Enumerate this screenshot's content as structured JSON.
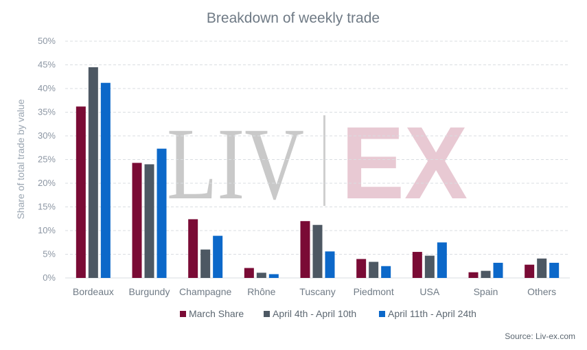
{
  "chart_data": {
    "type": "bar",
    "title": "Breakdown of weekly trade",
    "ylabel": "Share of total trade by value",
    "xlabel": "",
    "ylim": [
      0,
      50
    ],
    "yticks": [
      "0%",
      "5%",
      "10%",
      "15%",
      "20%",
      "25%",
      "30%",
      "35%",
      "40%",
      "45%",
      "50%"
    ],
    "grid": true,
    "legend_position": "bottom",
    "categories": [
      "Bordeaux",
      "Burgundy",
      "Champagne",
      "Rhône",
      "Tuscany",
      "Piedmont",
      "USA",
      "Spain",
      "Others"
    ],
    "series": [
      {
        "name": "March Share",
        "color": "#7a0b35",
        "values": [
          36.2,
          24.3,
          12.4,
          2.1,
          12.0,
          4.0,
          5.5,
          1.2,
          2.8
        ]
      },
      {
        "name": "April 4th - April 10th",
        "color": "#4d5863",
        "values": [
          44.5,
          24.0,
          6.0,
          1.1,
          11.2,
          3.4,
          4.7,
          1.5,
          4.1
        ]
      },
      {
        "name": "April 11th - April 24th",
        "color": "#0c68c9",
        "values": [
          41.2,
          27.3,
          8.9,
          0.8,
          5.6,
          2.5,
          7.5,
          3.2,
          3.2
        ]
      }
    ]
  },
  "watermark": {
    "left": "LIV",
    "right": "EX"
  },
  "source": "Source: Liv-ex.com"
}
